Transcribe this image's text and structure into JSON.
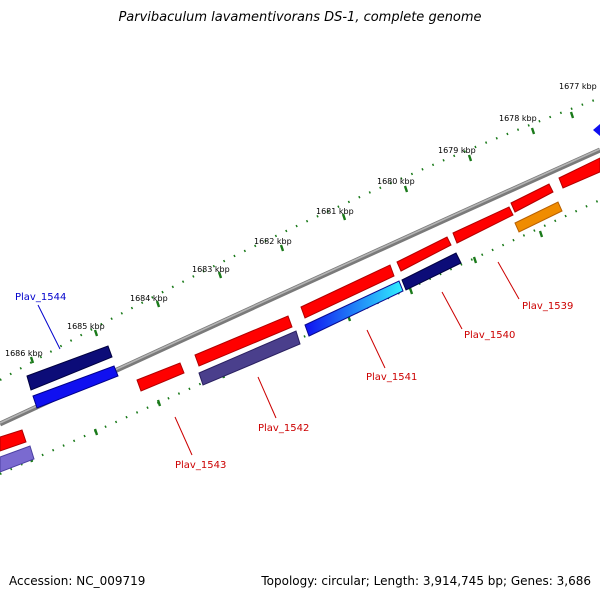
{
  "title": "Parvibaculum lavamentivorans DS-1, complete genome",
  "accession_text": "Accession: NC_009719",
  "topology_text": "Topology: circular; Length: 3,914,745 bp; Genes: 3,686",
  "scale_labels": [
    "1677 kbp",
    "1678 kbp",
    "1679 kbp",
    "1680 kbp",
    "1681 kbp",
    "1682 kbp",
    "1683 kbp",
    "1684 kbp",
    "1685 kbp",
    "1686 kbp"
  ],
  "gene_labels": {
    "plav_1539": "Plav_1539",
    "plav_1540": "Plav_1540",
    "plav_1541": "Plav_1541",
    "plav_1542": "Plav_1542",
    "plav_1543": "Plav_1543",
    "plav_1544": "Plav_1544"
  },
  "colors": {
    "backbone": "#8c8c8c",
    "tick": "#1a7a1a",
    "forward_gene": "#ff0000",
    "reverse_gene": "#ff0000",
    "label_red": "#cc0000",
    "label_blue": "#0000cc",
    "navy": "#0c0c78",
    "blue": "#1010f0",
    "slate": "#4a3f8c",
    "orange": "#f08c00",
    "cyan": "#20e0f0",
    "lavender": "#7a6ad0"
  }
}
